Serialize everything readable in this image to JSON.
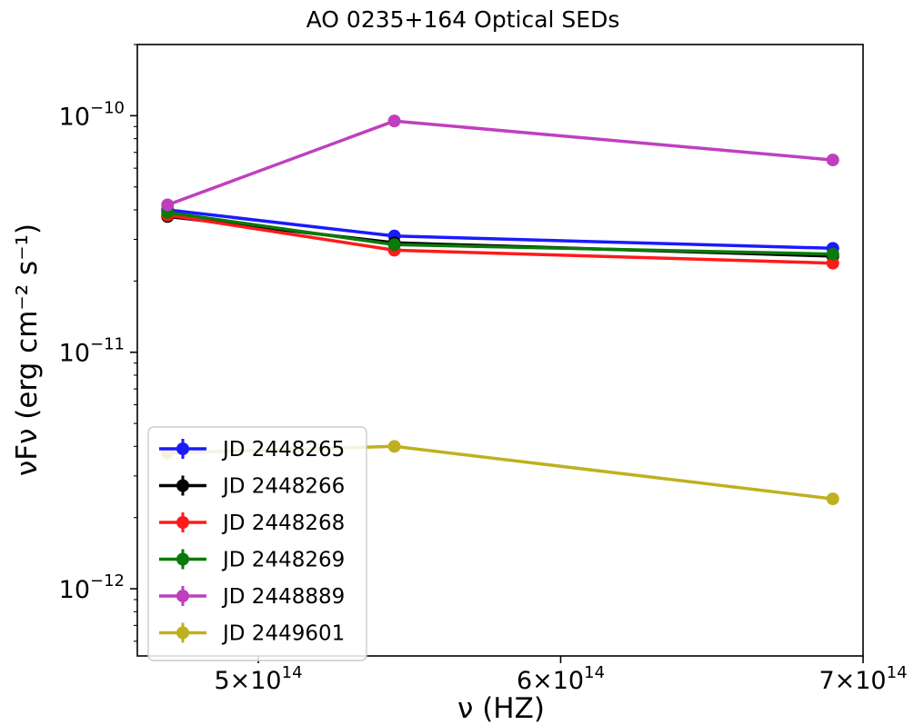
{
  "chart_data": {
    "type": "line",
    "title": "AO 0235+164 Optical SEDs",
    "xlabel": "ν (HZ)",
    "ylabel": "νFν (erg cm⁻² s⁻¹)",
    "x_scale": "linear",
    "y_scale": "log",
    "xlim": [
      460000000000000.0,
      700000000000000.0
    ],
    "ylim": [
      5.2e-13,
      2e-10
    ],
    "x_ticks": [
      {
        "value": 500000000000000.0,
        "mantissa": "5",
        "exponent": "14"
      },
      {
        "value": 600000000000000.0,
        "mantissa": "6",
        "exponent": "14"
      },
      {
        "value": 700000000000000.0,
        "mantissa": "7",
        "exponent": "14"
      }
    ],
    "y_ticks": [
      {
        "value": 1e-10,
        "exponent": "−10"
      },
      {
        "value": 1e-11,
        "exponent": "−11"
      },
      {
        "value": 1e-12,
        "exponent": "−12"
      }
    ],
    "grid": false,
    "legend_position": "lower-left",
    "x": [
      470000000000000.0,
      545000000000000.0,
      690000000000000.0
    ],
    "series": [
      {
        "name": "JD 2448265",
        "color": "#1a1aff",
        "values": [
          4e-11,
          3.1e-11,
          2.75e-11
        ]
      },
      {
        "name": "JD 2448266",
        "color": "#000000",
        "values": [
          3.75e-11,
          2.9e-11,
          2.55e-11
        ]
      },
      {
        "name": "JD 2448268",
        "color": "#ff1a1a",
        "values": [
          3.8e-11,
          2.7e-11,
          2.38e-11
        ]
      },
      {
        "name": "JD 2448269",
        "color": "#0a7a0a",
        "values": [
          3.9e-11,
          2.85e-11,
          2.6e-11
        ]
      },
      {
        "name": "JD 2448889",
        "color": "#bf3fbf",
        "values": [
          4.2e-11,
          9.5e-11,
          6.5e-11
        ]
      },
      {
        "name": "JD 2449601",
        "color": "#bfb020",
        "values": [
          3.75e-12,
          4e-12,
          2.4e-12
        ]
      }
    ]
  }
}
